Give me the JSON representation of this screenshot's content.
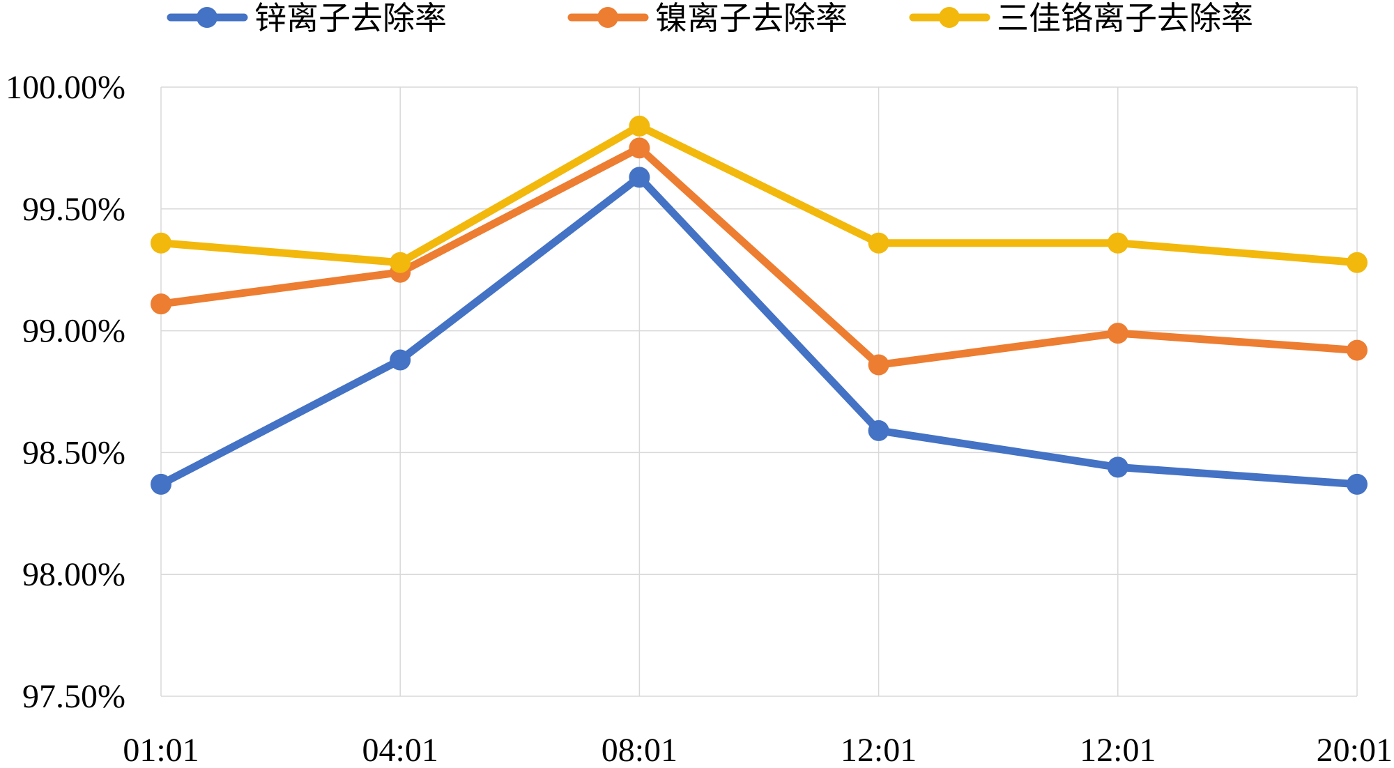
{
  "chart_data": {
    "type": "line",
    "title": "",
    "xlabel": "",
    "ylabel": "",
    "categories": [
      "01:01",
      "04:01",
      "08:01",
      "12:01",
      "12:01",
      "20:01"
    ],
    "ylim": [
      0.975,
      1.0
    ],
    "y_ticks": [
      0.975,
      0.98,
      0.985,
      0.99,
      0.995,
      1.0
    ],
    "y_tick_labels": [
      "97.50%",
      "98.00%",
      "98.50%",
      "99.00%",
      "99.50%",
      "100.00%"
    ],
    "grid": true,
    "legend_position": "top",
    "series": [
      {
        "name": "锌离子去除率",
        "color": "#4472C4",
        "values": [
          0.9837,
          0.9888,
          0.9963,
          0.9859,
          0.9844,
          0.9837
        ]
      },
      {
        "name": "镍离子去除率",
        "color": "#ED7D31",
        "values": [
          0.9911,
          0.9924,
          0.9975,
          0.9886,
          0.9899,
          0.9892
        ]
      },
      {
        "name": "三佳铬离子去除率",
        "color": "#F2B80C",
        "values": [
          0.9936,
          0.9928,
          0.9984,
          0.9936,
          0.9936,
          0.9928
        ]
      }
    ]
  }
}
